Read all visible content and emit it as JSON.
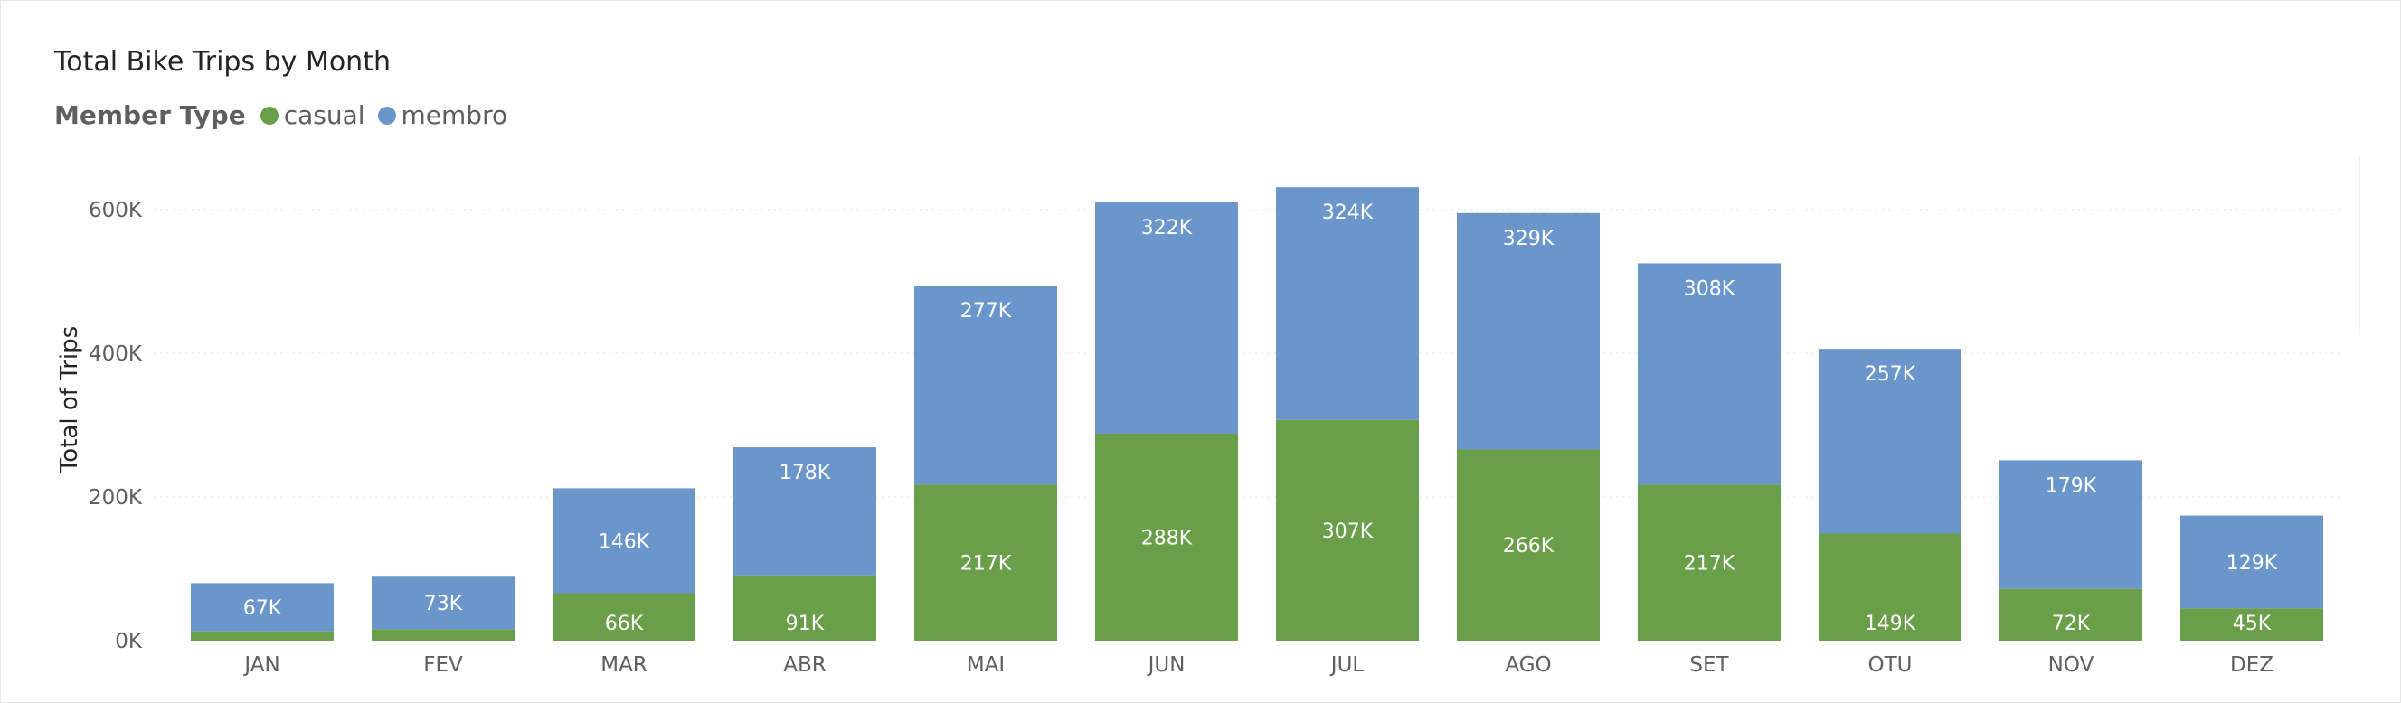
{
  "chart_data": {
    "type": "bar",
    "stacked": true,
    "title": "Total Bike Trips by Month",
    "legend_title": "Member Type",
    "legend_placement": "top-left",
    "xlabel": "",
    "ylabel": "Total of Trips",
    "ylim": [
      0,
      640000
    ],
    "yticks": [
      0,
      200000,
      400000,
      600000
    ],
    "ytick_labels": [
      "0K",
      "200K",
      "400K",
      "600K"
    ],
    "grid": true,
    "categories": [
      "JAN",
      "FEV",
      "MAR",
      "ABR",
      "MAI",
      "JUN",
      "JUL",
      "AGO",
      "SET",
      "OTU",
      "NOV",
      "DEZ"
    ],
    "series": [
      {
        "name": "casual",
        "color": "#6a9f4a",
        "values": [
          13000,
          16000,
          66000,
          91000,
          217000,
          288000,
          307000,
          266000,
          217000,
          149000,
          72000,
          45000
        ],
        "labels": [
          "",
          "",
          "66K",
          "91K",
          "217K",
          "288K",
          "307K",
          "266K",
          "217K",
          "149K",
          "72K",
          "45K"
        ]
      },
      {
        "name": "membro",
        "color": "#6a96cc",
        "values": [
          67000,
          73000,
          146000,
          178000,
          277000,
          322000,
          324000,
          329000,
          308000,
          257000,
          179000,
          129000
        ],
        "labels": [
          "67K",
          "73K",
          "146K",
          "178K",
          "277K",
          "322K",
          "324K",
          "329K",
          "308K",
          "257K",
          "179K",
          "129K"
        ]
      }
    ]
  }
}
